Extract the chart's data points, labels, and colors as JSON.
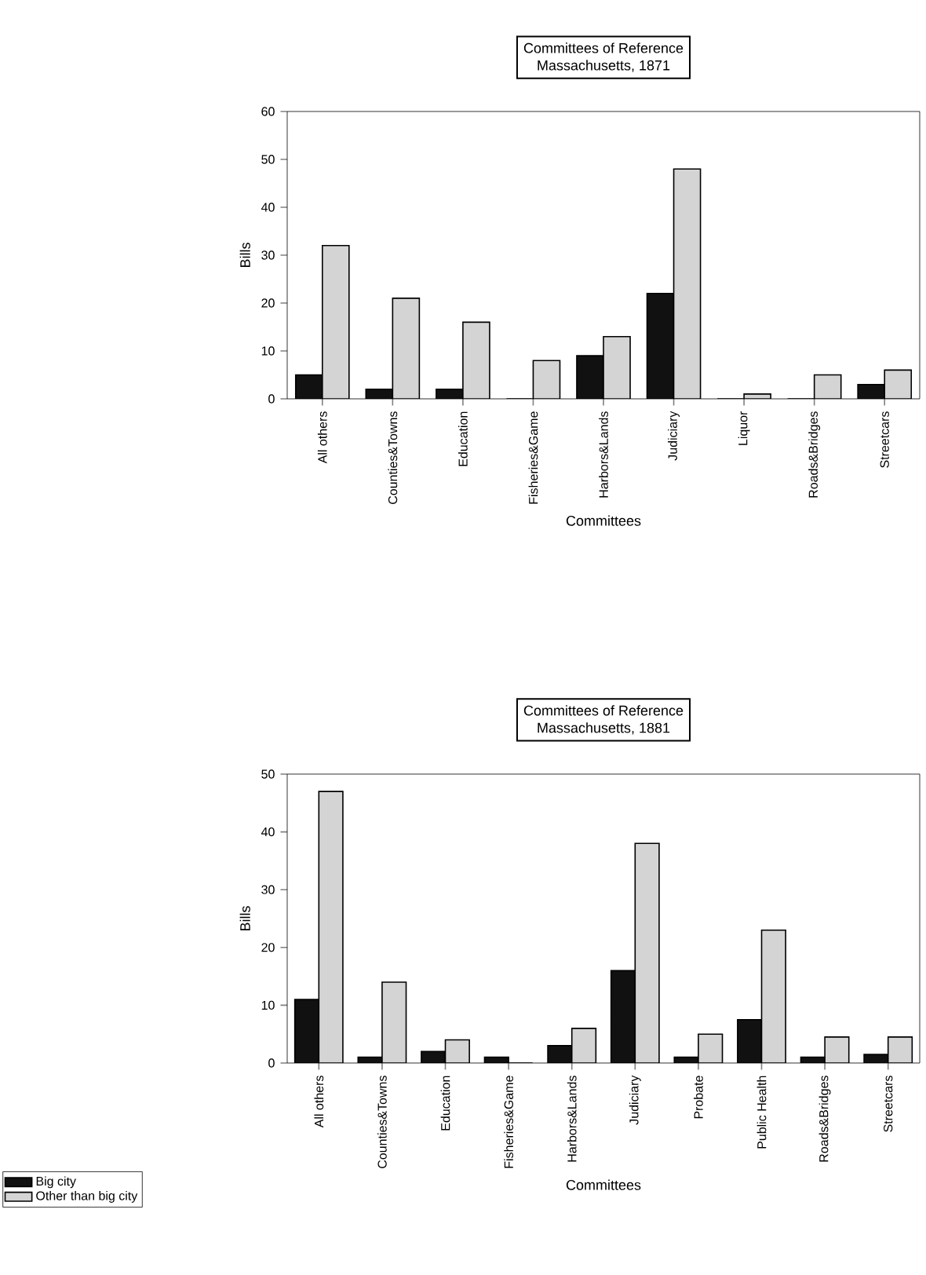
{
  "chart_data": [
    {
      "type": "bar",
      "title": "Committees of Reference",
      "subtitle": "Massachusetts, 1871",
      "xlabel": "Committees",
      "ylabel": "Bills",
      "categories": [
        "All others",
        "Counties&Towns",
        "Education",
        "Fisheries&Game",
        "Harbors&Lands",
        "Judiciary",
        "Liquor",
        "Roads&Bridges",
        "Streetcars"
      ],
      "series": [
        {
          "color": "#111111",
          "values": [
            5,
            2,
            2,
            0,
            9,
            22,
            0,
            0,
            3
          ]
        },
        {
          "color": "#d4d4d4",
          "values": [
            32,
            21,
            16,
            8,
            13,
            48,
            1,
            5,
            6
          ]
        }
      ],
      "ylim": [
        0,
        60
      ],
      "yticks": [
        0,
        10,
        20,
        30,
        40,
        50,
        60
      ],
      "grid": false,
      "legend": false
    },
    {
      "type": "bar",
      "title": "Committees of Reference",
      "subtitle": "Massachusetts, 1881",
      "xlabel": "Committees",
      "ylabel": "Bills",
      "categories": [
        "All others",
        "Counties&Towns",
        "Education",
        "Fisheries&Game",
        "Harbors&Lands",
        "Judiciary",
        "Probate",
        "Public Health",
        "Roads&Bridges",
        "Streetcars"
      ],
      "series": [
        {
          "name": "Big city",
          "color": "#111111",
          "values": [
            11,
            1,
            2,
            1,
            3,
            16,
            1,
            7.5,
            1,
            1.5
          ]
        },
        {
          "name": "Other than big city",
          "color": "#d4d4d4",
          "values": [
            47,
            14,
            4,
            0,
            6,
            38,
            5,
            23,
            4.5,
            4.5
          ]
        }
      ],
      "ylim": [
        0,
        50
      ],
      "yticks": [
        0,
        10,
        20,
        30,
        40,
        50
      ],
      "grid": false,
      "legend": "bottom left"
    }
  ]
}
